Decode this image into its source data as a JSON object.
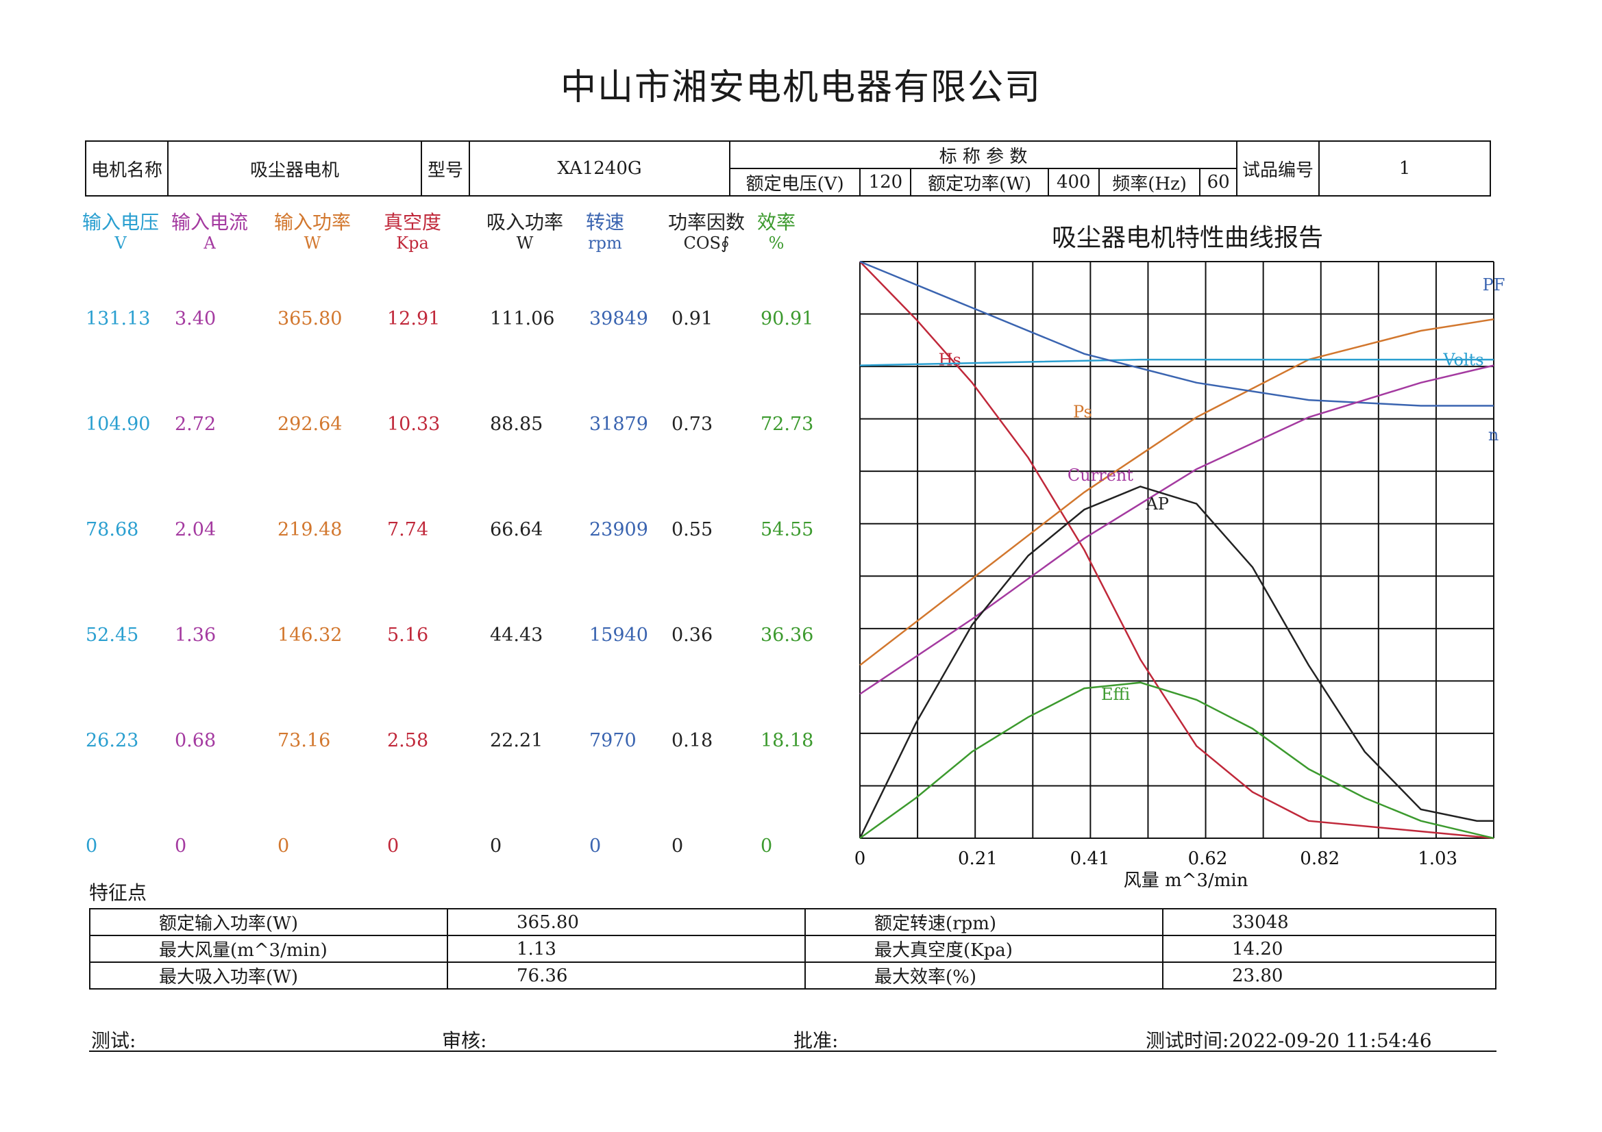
{
  "company": "中山市湘安电机电器有限公司",
  "header": {
    "motor_name_label": "电机名称",
    "motor_name": "吸尘器电机",
    "model_label": "型号",
    "model": "XA1240G",
    "rated_params_label": "标 称 参 数",
    "rated_voltage_label": "额定电压(V)",
    "rated_voltage": "120",
    "rated_power_label": "额定功率(W)",
    "rated_power": "400",
    "frequency_label": "频率(Hz)",
    "frequency": "60",
    "sample_no_label": "试品编号",
    "sample_no": "1"
  },
  "columns": [
    {
      "label": "输入电压",
      "unit": "V",
      "color": "#2a9fd0"
    },
    {
      "label": "输入电流",
      "unit": "A",
      "color": "#a43aa0"
    },
    {
      "label": "输入功率",
      "unit": "W",
      "color": "#d2772e"
    },
    {
      "label": "真空度",
      "unit": "Kpa",
      "color": "#c0283a"
    },
    {
      "label": "吸入功率",
      "unit": "W",
      "color": "#222222"
    },
    {
      "label": "转速",
      "unit": "rpm",
      "color": "#3a64b0"
    },
    {
      "label": "功率因数",
      "unit": "COS∮",
      "color": "#222222"
    },
    {
      "label": "效率",
      "unit": "%",
      "color": "#3c9a2e"
    }
  ],
  "rows": [
    [
      "131.13",
      "3.40",
      "365.80",
      "12.91",
      "111.06",
      "39849",
      "0.91",
      "90.91"
    ],
    [
      "104.90",
      "2.72",
      "292.64",
      "10.33",
      "88.85",
      "31879",
      "0.73",
      "72.73"
    ],
    [
      "78.68",
      "2.04",
      "219.48",
      "7.74",
      "66.64",
      "23909",
      "0.55",
      "54.55"
    ],
    [
      "52.45",
      "1.36",
      "146.32",
      "5.16",
      "44.43",
      "15940",
      "0.36",
      "36.36"
    ],
    [
      "26.23",
      "0.68",
      "73.16",
      "2.58",
      "22.21",
      "7970",
      "0.18",
      "18.18"
    ],
    [
      "0",
      "0",
      "0",
      "0",
      "0",
      "0",
      "0",
      "0"
    ]
  ],
  "chart_data": {
    "type": "line",
    "title": "吸尘器电机特性曲线报告",
    "xlabel": "风量   m^3/min",
    "x_ticks": [
      "0",
      "0.21",
      "0.41",
      "0.62",
      "0.82",
      "1.03"
    ],
    "xlim": [
      0,
      1.13
    ],
    "grid": true,
    "series": [
      {
        "name": "Hs",
        "color": "#c0283a",
        "label_at": [
          0.14,
          0.82
        ],
        "points": [
          [
            0,
            1.0
          ],
          [
            0.1,
            0.9
          ],
          [
            0.2,
            0.79
          ],
          [
            0.3,
            0.66
          ],
          [
            0.4,
            0.5
          ],
          [
            0.5,
            0.31
          ],
          [
            0.6,
            0.16
          ],
          [
            0.7,
            0.08
          ],
          [
            0.8,
            0.03
          ],
          [
            1.13,
            0.0
          ]
        ]
      },
      {
        "name": "Ps",
        "color": "#d2772e",
        "label_at": [
          0.38,
          0.73
        ],
        "points": [
          [
            0,
            0.3
          ],
          [
            0.2,
            0.45
          ],
          [
            0.4,
            0.6
          ],
          [
            0.6,
            0.73
          ],
          [
            0.8,
            0.83
          ],
          [
            1.0,
            0.88
          ],
          [
            1.13,
            0.9
          ]
        ]
      },
      {
        "name": "Volts",
        "color": "#2a9fd0",
        "label_at": [
          1.04,
          0.82
        ],
        "points": [
          [
            0,
            0.82
          ],
          [
            0.5,
            0.83
          ],
          [
            1.13,
            0.83
          ]
        ]
      },
      {
        "name": "n",
        "color": "#3a64b0",
        "label_at": [
          1.12,
          0.69
        ],
        "points": [
          [
            0,
            1.0
          ],
          [
            0.2,
            0.92
          ],
          [
            0.4,
            0.84
          ],
          [
            0.6,
            0.79
          ],
          [
            0.8,
            0.76
          ],
          [
            1.0,
            0.75
          ],
          [
            1.13,
            0.75
          ]
        ]
      },
      {
        "name": "PF",
        "color": "#3a64b0",
        "label_at": [
          1.11,
          0.95
        ],
        "points": []
      },
      {
        "name": "Current",
        "color": "#a43aa0",
        "label_at": [
          0.37,
          0.62
        ],
        "points": [
          [
            0,
            0.25
          ],
          [
            0.2,
            0.38
          ],
          [
            0.4,
            0.52
          ],
          [
            0.6,
            0.64
          ],
          [
            0.8,
            0.73
          ],
          [
            1.0,
            0.79
          ],
          [
            1.13,
            0.82
          ]
        ]
      },
      {
        "name": "AP",
        "color": "#222222",
        "label_at": [
          0.51,
          0.57
        ],
        "points": [
          [
            0,
            0.0
          ],
          [
            0.1,
            0.2
          ],
          [
            0.2,
            0.37
          ],
          [
            0.3,
            0.49
          ],
          [
            0.4,
            0.57
          ],
          [
            0.5,
            0.61
          ],
          [
            0.6,
            0.58
          ],
          [
            0.7,
            0.47
          ],
          [
            0.8,
            0.3
          ],
          [
            0.9,
            0.15
          ],
          [
            1.0,
            0.05
          ],
          [
            1.1,
            0.03
          ],
          [
            1.13,
            0.03
          ]
        ]
      },
      {
        "name": "Effi",
        "color": "#3c9a2e",
        "label_at": [
          0.43,
          0.24
        ],
        "points": [
          [
            0,
            0.0
          ],
          [
            0.1,
            0.07
          ],
          [
            0.2,
            0.15
          ],
          [
            0.3,
            0.21
          ],
          [
            0.4,
            0.26
          ],
          [
            0.5,
            0.27
          ],
          [
            0.6,
            0.24
          ],
          [
            0.7,
            0.19
          ],
          [
            0.8,
            0.12
          ],
          [
            0.9,
            0.07
          ],
          [
            1.0,
            0.03
          ],
          [
            1.13,
            0.0
          ]
        ]
      }
    ]
  },
  "features": {
    "label": "特征点",
    "rows": [
      [
        "额定输入功率(W)",
        "365.80",
        "额定转速(rpm)",
        "33048"
      ],
      [
        "最大风量(m^3/min)",
        "1.13",
        "最大真空度(Kpa)",
        "14.20"
      ],
      [
        "最大吸入功率(W)",
        "76.36",
        "最大效率(%)",
        "23.80"
      ]
    ]
  },
  "footer": {
    "tester": "测试:",
    "reviewer": "审核:",
    "approver": "批准:",
    "test_time_label": "测试时间:",
    "test_time": "2022-09-20 11:54:46"
  }
}
